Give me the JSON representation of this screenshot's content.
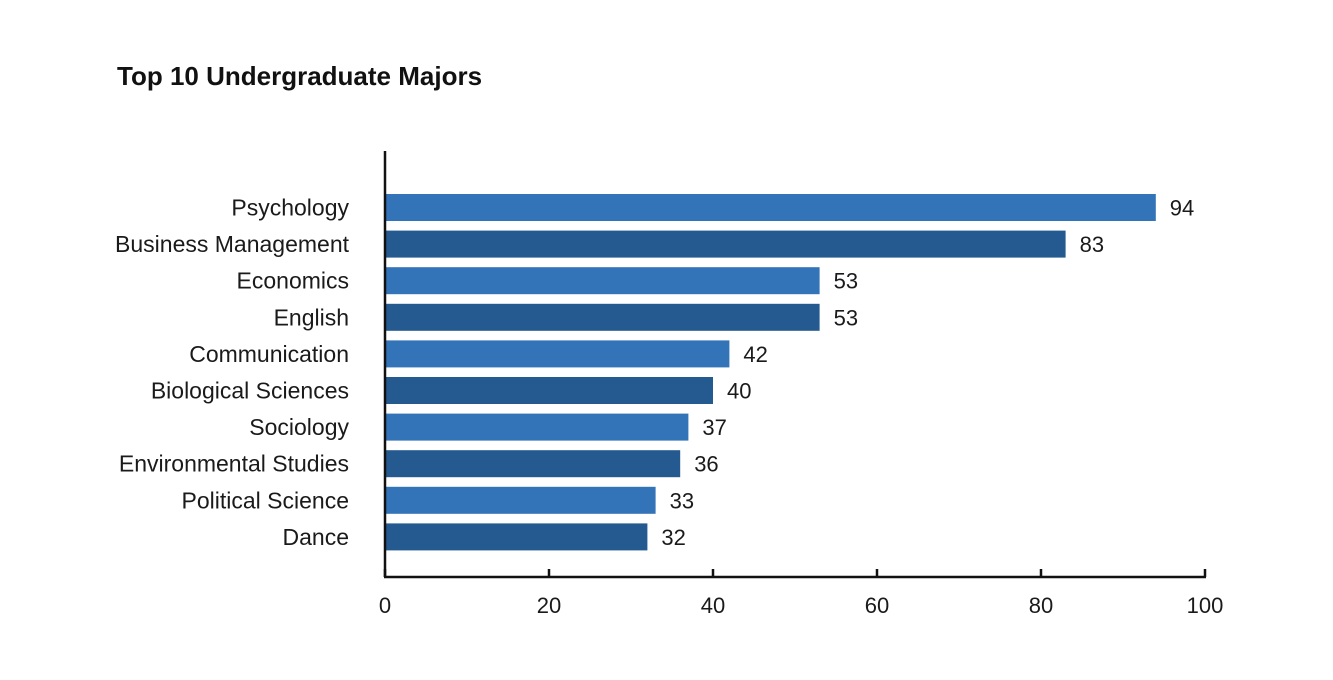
{
  "chart_data": {
    "type": "bar",
    "orientation": "horizontal",
    "title": "Top 10 Undergraduate Majors",
    "categories": [
      "Psychology",
      "Business Management",
      "Economics",
      "English",
      "Communication",
      "Biological Sciences",
      "Sociology",
      "Environmental Studies",
      "Political Science",
      "Dance"
    ],
    "values": [
      94,
      83,
      53,
      53,
      42,
      40,
      37,
      36,
      33,
      32
    ],
    "xlim": [
      0,
      100
    ],
    "xticks": [
      0,
      20,
      40,
      60,
      80,
      100
    ],
    "grid": false,
    "legend": "none",
    "colors": {
      "bar_light": "#3373b8",
      "bar_dark": "#245a8f",
      "axis": "#111111"
    }
  }
}
